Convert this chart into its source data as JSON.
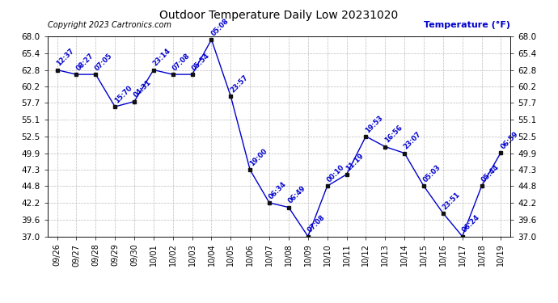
{
  "title": "Outdoor Temperature Daily Low 20231020",
  "copyright": "Copyright 2023 Cartronics.com",
  "ylabel": "Temperature (°F)",
  "bg_color": "#ffffff",
  "line_color": "#0000cc",
  "text_color": "#0000cc",
  "grid_color": "#bbbbbb",
  "x_labels": [
    "09/26",
    "09/27",
    "09/28",
    "09/29",
    "09/30",
    "10/01",
    "10/02",
    "10/03",
    "10/04",
    "10/05",
    "10/06",
    "10/07",
    "10/08",
    "10/09",
    "10/10",
    "10/11",
    "10/12",
    "10/13",
    "10/14",
    "10/15",
    "10/16",
    "10/17",
    "10/18",
    "10/19"
  ],
  "y_values": [
    62.8,
    62.1,
    62.1,
    57.1,
    57.9,
    62.8,
    62.1,
    62.1,
    67.5,
    58.7,
    47.3,
    42.2,
    41.5,
    37.0,
    44.8,
    46.6,
    52.5,
    50.9,
    49.9,
    44.8,
    40.6,
    37.0,
    44.8,
    50.0
  ],
  "time_labels": [
    "12:37",
    "08:27",
    "07:05",
    "15:70",
    "04:31",
    "23:14",
    "07:08",
    "05:54",
    "05:08",
    "23:57",
    "19:00",
    "06:34",
    "06:49",
    "07:08",
    "00:10",
    "11:19",
    "19:53",
    "16:56",
    "23:07",
    "05:03",
    "23:51",
    "06:24",
    "05:44",
    "06:59"
  ],
  "ylim": [
    37.0,
    68.0
  ],
  "yticks": [
    37.0,
    39.6,
    42.2,
    44.8,
    47.3,
    49.9,
    52.5,
    55.1,
    57.7,
    60.2,
    62.8,
    65.4,
    68.0
  ]
}
